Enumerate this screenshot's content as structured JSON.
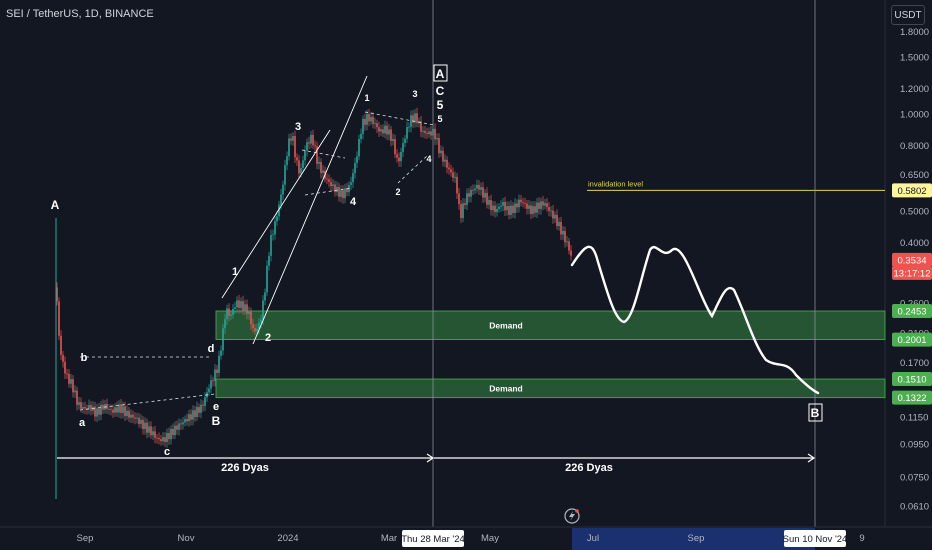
{
  "symbol_title": "SEI / TetherUS, 1D, BINANCE",
  "currency_button": "USDT",
  "chart_data": {
    "type": "candlestick",
    "price_axis": {
      "scale": "log",
      "ticks": [
        "1.8000",
        "1.5000",
        "1.2000",
        "1.0000",
        "0.8000",
        "0.6500",
        "0.5000",
        "0.4000",
        "0.2600",
        "0.2100",
        "0.1700",
        "0.1150",
        "0.0950",
        "0.0750",
        "0.0610"
      ]
    },
    "time_axis": {
      "ticks": [
        "Sep",
        "Nov",
        "2024",
        "Mar",
        "May",
        "Jul",
        "Sep",
        "9"
      ],
      "crosshair_label": "Thu 28 Mar '24",
      "projection_label": "Sun 10 Nov '24"
    },
    "price_labels": [
      {
        "text": "0.5802",
        "kind": "level"
      },
      {
        "text": "0.3534",
        "kind": "last"
      },
      {
        "text": "13:17:12",
        "kind": "countdown"
      },
      {
        "text": "0.2453",
        "kind": "zone"
      },
      {
        "text": "0.2001",
        "kind": "zone"
      },
      {
        "text": "0.1510",
        "kind": "zone"
      },
      {
        "text": "0.1322",
        "kind": "zone"
      }
    ],
    "invalidation": {
      "label": "invalidation level",
      "price": 0.5802
    },
    "demand_zones": [
      {
        "label": "Demand",
        "top": 0.2453,
        "bottom": 0.2001
      },
      {
        "label": "Demand",
        "top": 0.151,
        "bottom": 0.1322
      }
    ],
    "wave_labels": [
      "A",
      "a",
      "b",
      "c",
      "d",
      "e",
      "B",
      "1",
      "2",
      "3",
      "4",
      "1",
      "2",
      "3",
      "4",
      "5",
      "A",
      "C",
      "5",
      "B"
    ],
    "durations": [
      "226 Dyas",
      "226 Dyas"
    ],
    "colors": {
      "up": "#26a69a",
      "down": "#ef5350",
      "zone": "#2e6b3a",
      "level": "#e0d45a",
      "background": "#131722"
    }
  }
}
